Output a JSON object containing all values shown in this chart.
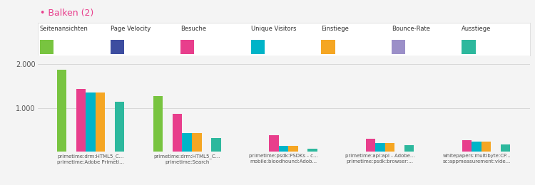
{
  "title": "Balken (2)",
  "title_color": "#e83e8c",
  "metrics": [
    "Seitenansichten",
    "Page Velocity",
    "Besuche",
    "Unique Visitors",
    "Einstiege",
    "Bounce-Rate",
    "Ausstiege"
  ],
  "metric_colors": [
    "#78c440",
    "#3d4da0",
    "#e83e8c",
    "#00b4c8",
    "#f5a623",
    "#9b8fc8",
    "#2db89d"
  ],
  "groups": [
    "primetime:drm:HTML5_C...\nprimetime:Adobe Primeti...",
    "primetime:drm:HTML5_C...\nprimetime:Search",
    "primetime:psdk:PSDKs - c...\nmobile:bloodhound:Adob...",
    "primetime:api:api - Adobe...\nprimetime:psdk:browser:...",
    "whitepapers:multibyte:CP...\nsc:appmeasurement:vide..."
  ],
  "values": [
    [
      1870,
      0,
      1430,
      1360,
      1360,
      0,
      1150
    ],
    [
      1280,
      0,
      870,
      430,
      430,
      0,
      310
    ],
    [
      0,
      0,
      380,
      130,
      130,
      0,
      70
    ],
    [
      0,
      0,
      290,
      200,
      200,
      0,
      150
    ],
    [
      0,
      0,
      270,
      230,
      230,
      0,
      160
    ]
  ],
  "ylim": [
    0,
    2200
  ],
  "ytick_labels": [
    "",
    "1.000",
    "2.000"
  ],
  "ytick_vals": [
    0,
    1000,
    2000
  ],
  "background_color": "#f4f4f4",
  "plot_background": "#f4f4f4",
  "legend_border_color": "#dddddd",
  "legend_bg": "#ffffff",
  "grid_color": "#cccccc",
  "text_color": "#555555"
}
